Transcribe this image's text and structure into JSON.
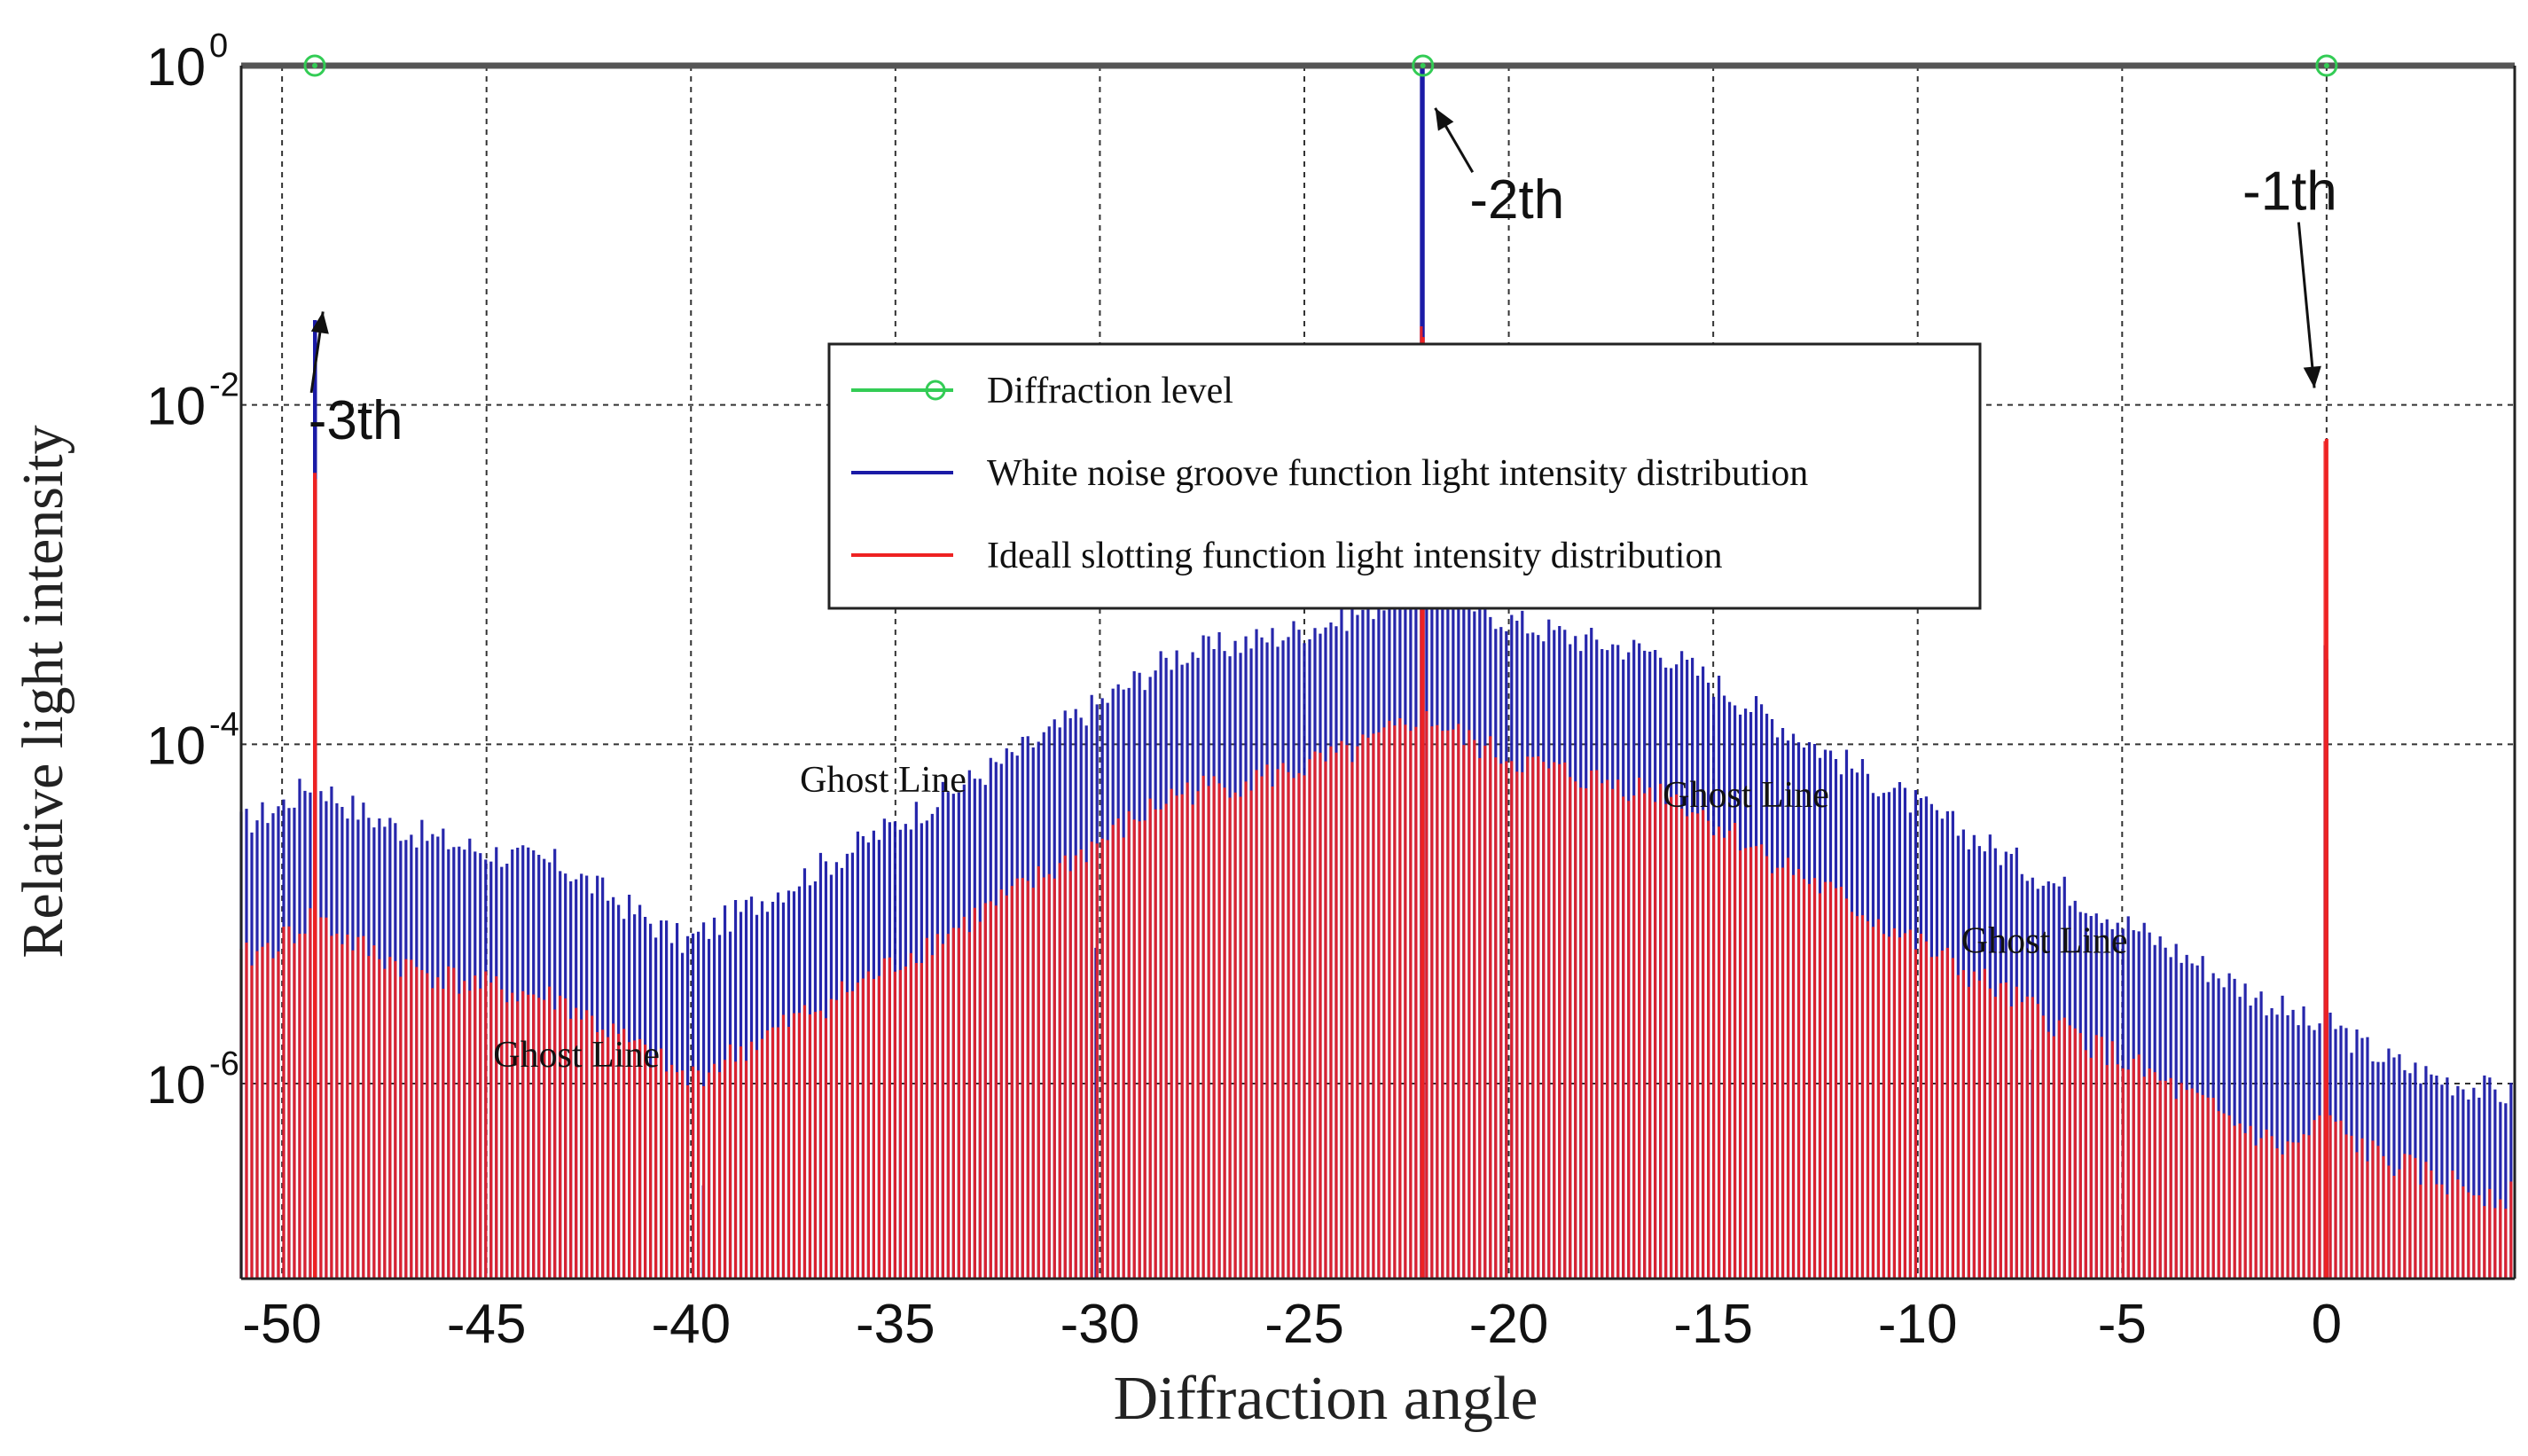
{
  "chart_data": {
    "type": "line",
    "xlabel": "Diffraction angle",
    "ylabel": "Relative light intensity",
    "xlim": [
      -51,
      4.6
    ],
    "ylim_exponent": [
      -7.15,
      0
    ],
    "y_scale": "log",
    "grid": true,
    "x_ticks": [
      {
        "value": -50,
        "label": "-50"
      },
      {
        "value": -45,
        "label": "-45"
      },
      {
        "value": -40,
        "label": "-40"
      },
      {
        "value": -35,
        "label": "-35"
      },
      {
        "value": -30,
        "label": "-30"
      },
      {
        "value": -25,
        "label": "-25"
      },
      {
        "value": -20,
        "label": "-20"
      },
      {
        "value": -15,
        "label": "-15"
      },
      {
        "value": -10,
        "label": "-10"
      },
      {
        "value": -5,
        "label": "-5"
      },
      {
        "value": 0,
        "label": "0"
      }
    ],
    "y_ticks": [
      {
        "exponent": 0,
        "base": "10",
        "exp": "0"
      },
      {
        "exponent": -2,
        "base": "10",
        "exp": "-2"
      },
      {
        "exponent": -4,
        "base": "10",
        "exp": "-4"
      },
      {
        "exponent": -6,
        "base": "10",
        "exp": "-6"
      }
    ],
    "legend": {
      "position": "upper-center",
      "items": [
        {
          "label": "Diffraction level",
          "color": "#33cc55",
          "marker": "circle"
        },
        {
          "label": "White noise groove function light intensity distribution",
          "color": "#1a1aa6"
        },
        {
          "label": "Ideall slotting function light intensity distribution",
          "color": "#ee2222"
        }
      ]
    },
    "series": [
      {
        "name": "Diffraction level",
        "color": "#33cc55",
        "points": [
          {
            "x": -49.2,
            "y": 1
          },
          {
            "x": -22.1,
            "y": 1
          },
          {
            "x": 0,
            "y": 1
          }
        ]
      },
      {
        "name": "White noise groove function light intensity distribution",
        "color": "#1a1aa6",
        "peaks": [
          {
            "x": -49.2,
            "peak_exp": -1.5,
            "wing_exp": -4.2,
            "width": 1.0
          },
          {
            "x": -22.1,
            "peak_exp": 0,
            "wing_exp": -3.0,
            "width": 1.2
          },
          {
            "x": 0,
            "peak_exp": -3.5,
            "wing_exp": -5.6,
            "width": 0.9
          }
        ],
        "ghost_spikes": [
          {
            "x": -39.7,
            "y_exp": -6.6
          },
          {
            "x": -30.1,
            "y_exp": -5.2
          },
          {
            "x": -14.6,
            "y_exp": -5.1
          },
          {
            "x": -7.2,
            "y_exp": -5.8
          }
        ]
      },
      {
        "name": "Ideall slotting function light intensity distribution",
        "color": "#ee2222",
        "peaks": [
          {
            "x": -49.2,
            "peak_exp": -2.4,
            "wing_exp": -5.0,
            "width": 1.0
          },
          {
            "x": -22.1,
            "peak_exp": -1.6,
            "wing_exp": -3.8,
            "width": 1.1
          },
          {
            "x": 0,
            "peak_exp": -2.2,
            "wing_exp": -6.2,
            "width": 0.9
          }
        ]
      }
    ],
    "annotations": [
      {
        "text": "-3th",
        "x": -48.2,
        "y_exp": -2.2,
        "arrow_to_x": -49.0,
        "arrow_to_y_exp": -1.45,
        "style": "sans"
      },
      {
        "text": "-2th",
        "x": -19.8,
        "y_exp": -0.9,
        "arrow_to_x": -21.8,
        "arrow_to_y_exp": -0.25,
        "style": "sans"
      },
      {
        "text": "-1th",
        "x": -0.9,
        "y_exp": -0.85,
        "arrow_to_x": -0.3,
        "arrow_to_y_exp": -1.9,
        "style": "sans"
      },
      {
        "text": "Ghost Line",
        "x": -35.3,
        "y_exp": -4.28,
        "style": "serif"
      },
      {
        "text": "Ghost Line",
        "x": -14.2,
        "y_exp": -4.37,
        "style": "serif"
      },
      {
        "text": "Ghost Line",
        "x": -6.9,
        "y_exp": -5.23,
        "style": "serif"
      },
      {
        "text": "Ghost Line",
        "x": -42.8,
        "y_exp": -5.9,
        "style": "serif"
      }
    ]
  }
}
